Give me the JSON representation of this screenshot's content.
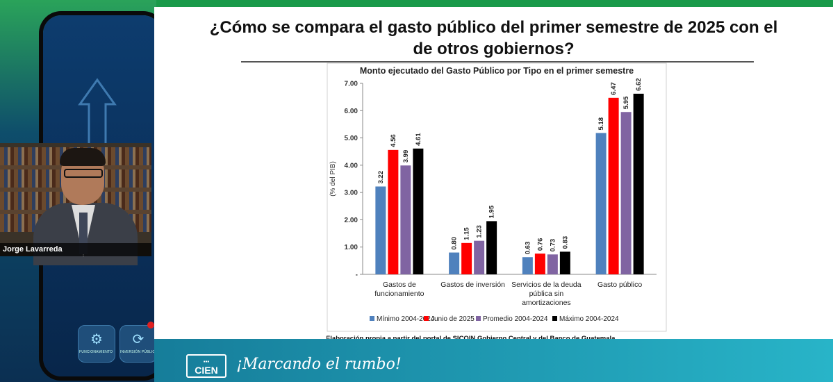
{
  "presenter": {
    "name": "Jorge Lavarreda"
  },
  "phone": {
    "apps": [
      {
        "label": "FUNCIONAMIENTO",
        "icon": "gear-icon"
      },
      {
        "label": "INVERSIÓN PÚBLICA",
        "icon": "investment-icon"
      }
    ]
  },
  "slide": {
    "title_line1": "¿Cómo se compara el gasto público del primer semestre de 2025 con el",
    "title_line2": "de otros gobiernos?",
    "source": "Fuente: Elaboración propia a partir del portal de SICOIN Gobierno Central y del Banco de Guatemala."
  },
  "brand": {
    "logo_top": "▪▪▪",
    "logo_text": "CIEN",
    "tagline": "¡Marcando el rumbo!"
  },
  "chart_data": {
    "type": "bar",
    "title": "Monto ejecutado del Gasto Público por Tipo en el primer semestre",
    "ylabel": "(% del PIB)",
    "xlabel": "",
    "ylim": [
      0,
      7
    ],
    "yticks": [
      "-",
      "1.00",
      "2.00",
      "3.00",
      "4.00",
      "5.00",
      "6.00",
      "7.00"
    ],
    "grid": false,
    "legend_position": "bottom",
    "categories": [
      [
        "Gastos de",
        "funcionamiento"
      ],
      [
        "Gastos de inversión"
      ],
      [
        "Servicios de la deuda",
        "pública sin",
        "amortizaciones"
      ],
      [
        "Gasto público"
      ]
    ],
    "series": [
      {
        "name": "Mínimo 2004-2024",
        "color": "#4f81bd",
        "values": [
          3.22,
          0.8,
          0.63,
          5.18
        ],
        "labels": [
          "3.22",
          "0.80",
          "0.63",
          "5.18"
        ]
      },
      {
        "name": "Junio de 2025",
        "color": "#ff0000",
        "values": [
          4.56,
          1.15,
          0.76,
          6.47
        ],
        "labels": [
          "4.56",
          "1.15",
          "0.76",
          "6.47"
        ]
      },
      {
        "name": "Promedio 2004-2024",
        "color": "#8064a2",
        "values": [
          3.99,
          1.23,
          0.73,
          5.95
        ],
        "labels": [
          "3.99",
          "1.23",
          "0.73",
          "5.95"
        ]
      },
      {
        "name": "Máximo 2004-2024",
        "color": "#000000",
        "values": [
          4.61,
          1.95,
          0.83,
          6.62
        ],
        "labels": [
          "4.61",
          "1.95",
          "0.83",
          "6.62"
        ]
      }
    ]
  }
}
